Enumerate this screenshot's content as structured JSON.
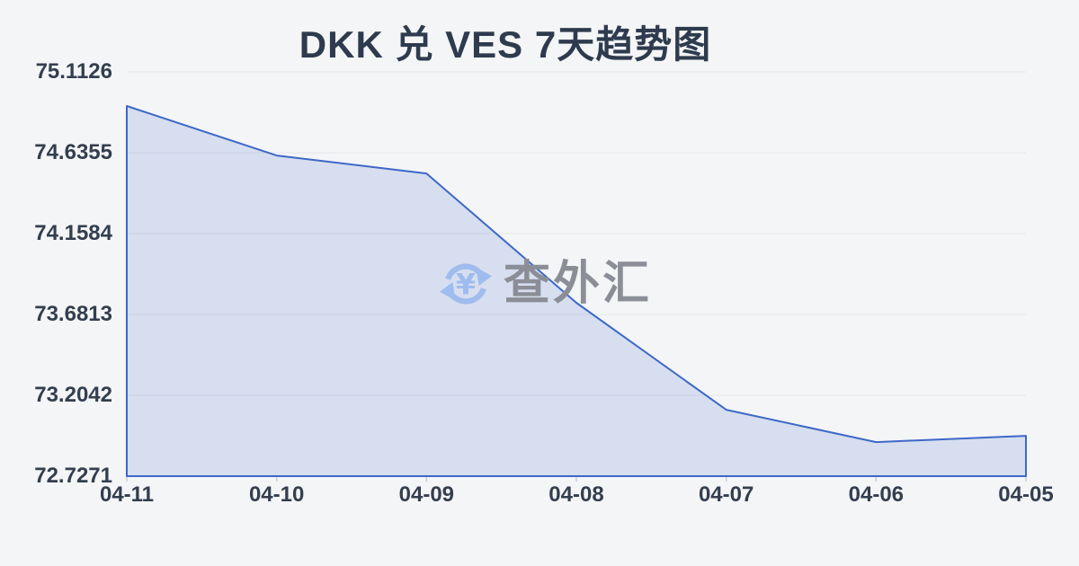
{
  "title": "DKK 兑 VES 7天趋势图",
  "watermark": {
    "text": "查外汇",
    "icon": "currency-exchange-icon"
  },
  "colors": {
    "background": "#f4f5f7",
    "title_text": "#2e3b4e",
    "axis_label": "#333e4f",
    "line": "#3e68c8",
    "area_fill": "rgba(62,104,200,0.16)",
    "gridline": "#e4e6eb",
    "tick_mark": "#c9ced6",
    "watermark_text": "#8b8e96",
    "watermark_icon": "#9fbcee"
  },
  "chart_data": {
    "type": "area",
    "title": "DKK 兑 VES 7天趋势图",
    "categories": [
      "04-11",
      "04-10",
      "04-09",
      "04-08",
      "04-07",
      "04-06",
      "04-05"
    ],
    "values": [
      74.911,
      74.619,
      74.513,
      73.75,
      73.119,
      72.928,
      72.965
    ],
    "series_name": "DKK/VES",
    "xlabel": "",
    "ylabel": "",
    "y_ticks": [
      "75.1126",
      "74.6355",
      "74.1584",
      "73.6813",
      "73.2042",
      "72.7271"
    ],
    "ylim": [
      72.7271,
      75.1126
    ],
    "grid": "horizontal",
    "legend": "none"
  }
}
